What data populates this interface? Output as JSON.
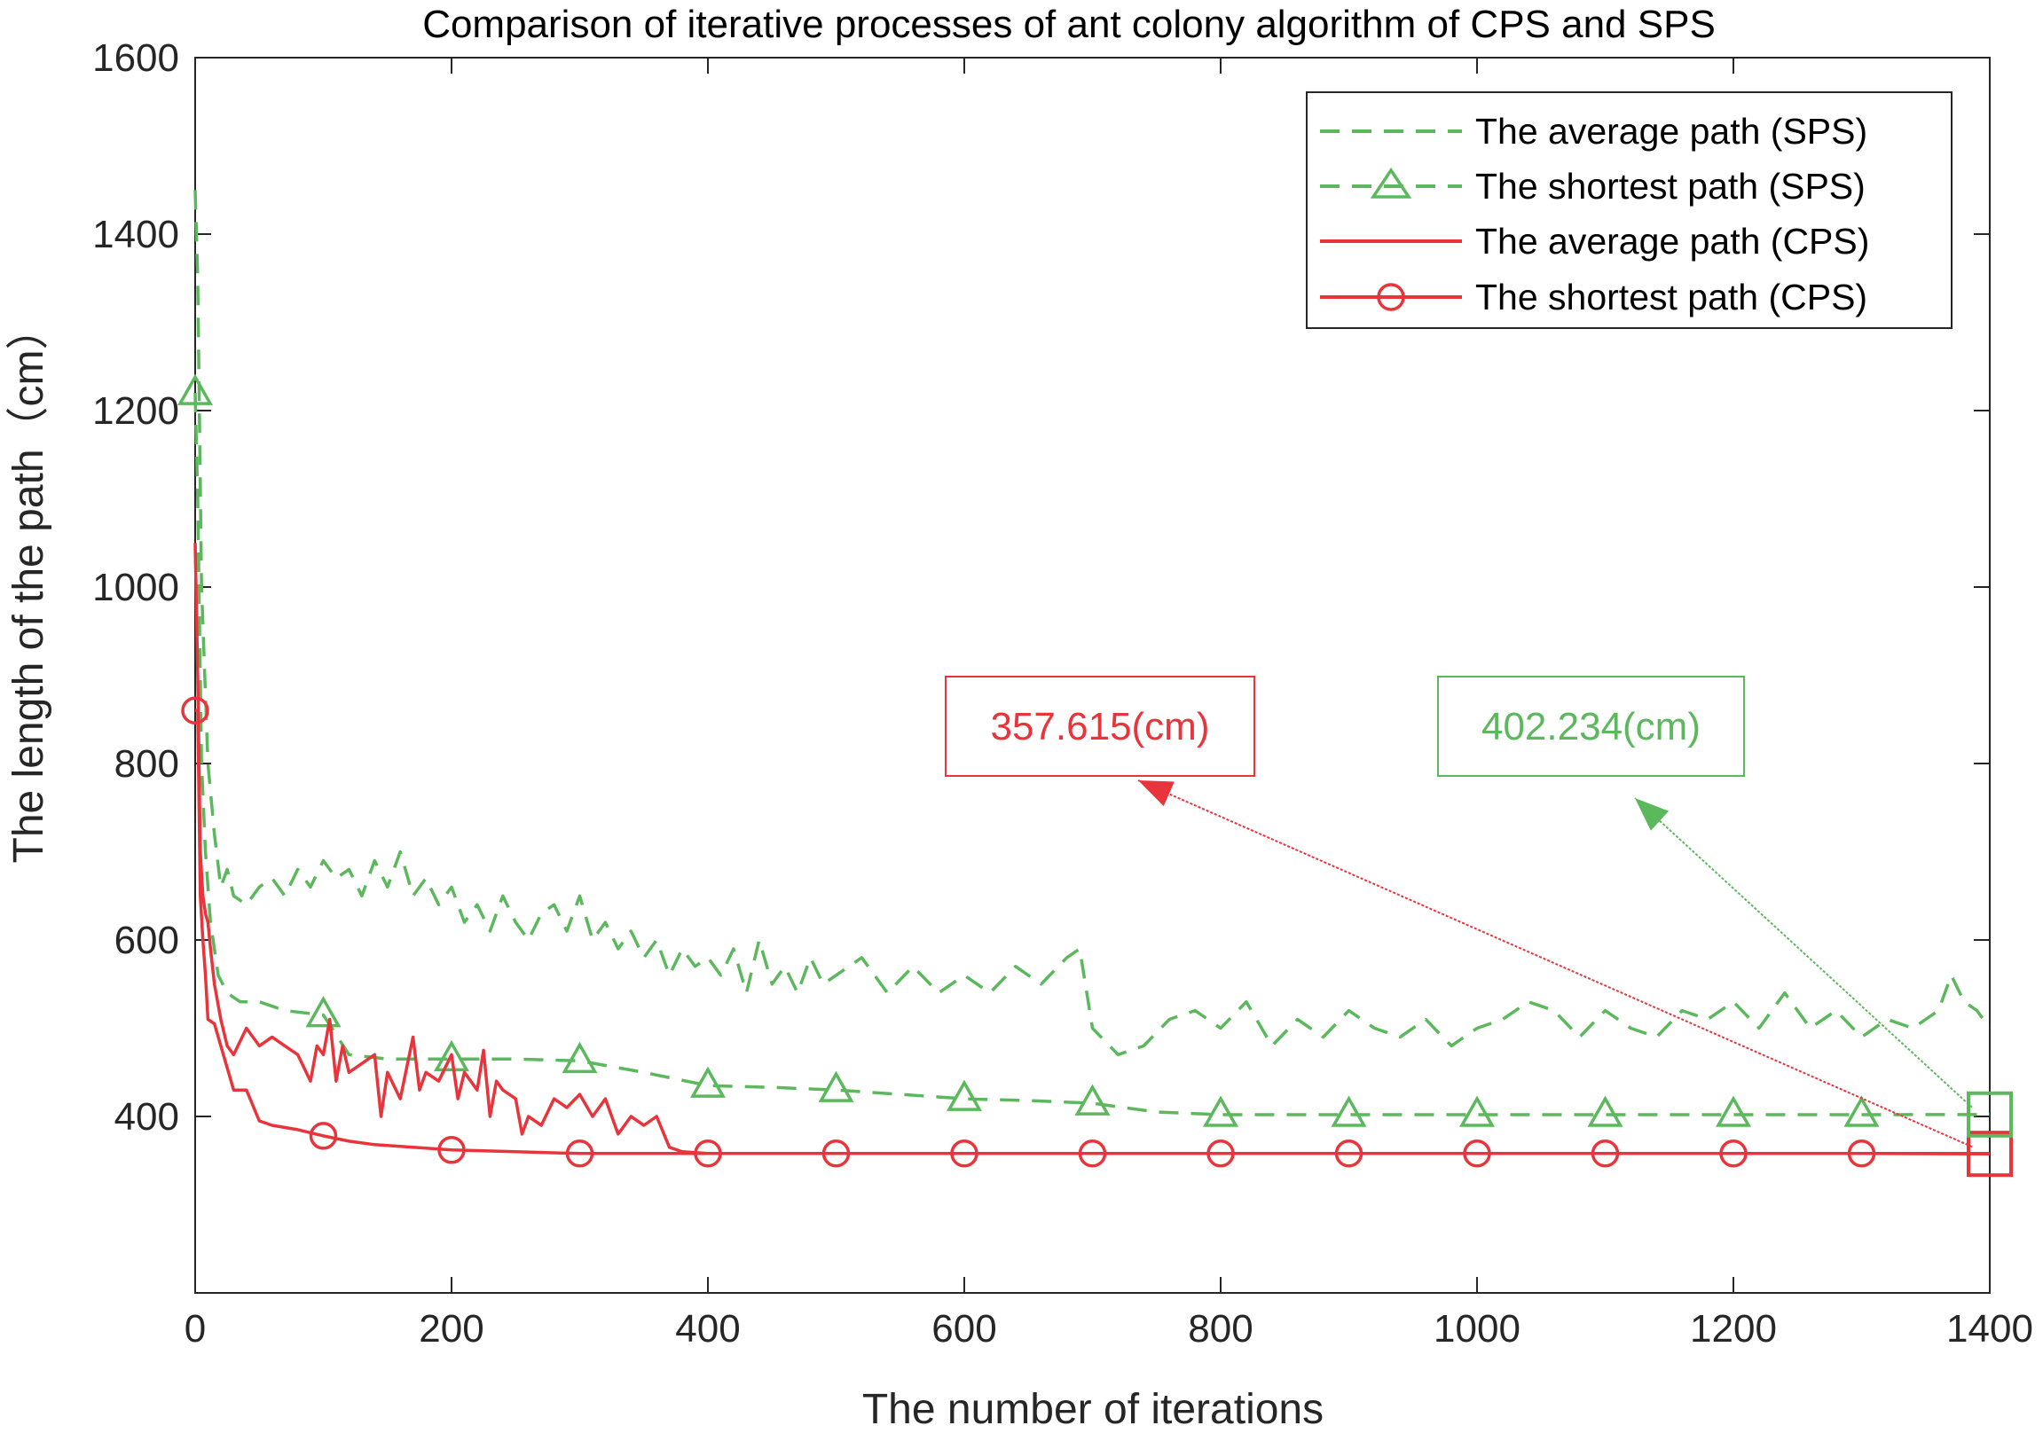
{
  "chart_data": {
    "type": "line",
    "title": "Comparison of iterative processes of ant colony algorithm of CPS and SPS",
    "xlabel": "The number of iterations",
    "ylabel": "The length of the path（cm）",
    "xlim": [
      0,
      1400
    ],
    "ylim": [
      200,
      1600
    ],
    "xticks": [
      0,
      200,
      400,
      600,
      800,
      1000,
      1200,
      1400
    ],
    "yticks": [
      400,
      600,
      800,
      1000,
      1200,
      1400,
      1600
    ],
    "legend_position": "top-right",
    "colors": {
      "sps": "#5cb85c",
      "cps": "#e8343a",
      "axis": "#262626"
    },
    "series": [
      {
        "name": "The average path (SPS)",
        "style": "dashed",
        "marker": "none",
        "color": "#5cb85c",
        "x": [
          0,
          2,
          5,
          10,
          15,
          20,
          25,
          30,
          40,
          50,
          60,
          70,
          80,
          90,
          100,
          110,
          120,
          130,
          140,
          150,
          160,
          170,
          180,
          190,
          200,
          210,
          220,
          230,
          240,
          250,
          260,
          270,
          280,
          290,
          300,
          310,
          320,
          330,
          340,
          350,
          360,
          370,
          380,
          390,
          400,
          410,
          420,
          430,
          440,
          450,
          460,
          470,
          480,
          490,
          500,
          520,
          540,
          560,
          580,
          600,
          620,
          640,
          660,
          680,
          690,
          700,
          720,
          740,
          760,
          780,
          800,
          820,
          840,
          860,
          880,
          900,
          920,
          940,
          960,
          980,
          1000,
          1020,
          1040,
          1060,
          1080,
          1100,
          1120,
          1140,
          1160,
          1180,
          1200,
          1220,
          1240,
          1260,
          1280,
          1300,
          1320,
          1340,
          1360,
          1370,
          1380,
          1390,
          1400
        ],
        "y": [
          1450,
          1350,
          1000,
          800,
          720,
          660,
          680,
          650,
          640,
          660,
          670,
          650,
          680,
          660,
          690,
          670,
          680,
          650,
          690,
          660,
          700,
          650,
          670,
          640,
          660,
          620,
          640,
          610,
          650,
          620,
          600,
          630,
          640,
          610,
          650,
          600,
          620,
          590,
          610,
          580,
          600,
          560,
          590,
          570,
          580,
          560,
          590,
          540,
          600,
          550,
          570,
          540,
          580,
          550,
          560,
          580,
          540,
          570,
          540,
          560,
          540,
          570,
          550,
          580,
          590,
          500,
          470,
          480,
          510,
          520,
          500,
          530,
          480,
          510,
          490,
          520,
          500,
          490,
          510,
          480,
          500,
          510,
          530,
          520,
          490,
          520,
          500,
          490,
          520,
          510,
          530,
          500,
          540,
          500,
          520,
          490,
          510,
          500,
          520,
          560,
          530,
          520,
          500
        ]
      },
      {
        "name": "The shortest path (SPS)",
        "style": "dashed",
        "marker": "triangle",
        "color": "#5cb85c",
        "x": [
          0,
          2,
          5,
          8,
          12,
          18,
          25,
          35,
          50,
          70,
          100,
          120,
          150,
          200,
          250,
          300,
          350,
          400,
          450,
          500,
          550,
          600,
          650,
          700,
          750,
          800,
          900,
          1000,
          1100,
          1200,
          1300,
          1400
        ],
        "y": [
          1220,
          1100,
          800,
          700,
          620,
          560,
          540,
          530,
          530,
          520,
          515,
          470,
          465,
          465,
          465,
          463,
          450,
          435,
          433,
          430,
          425,
          420,
          418,
          415,
          405,
          402,
          402,
          402,
          402,
          402,
          402,
          402.234
        ],
        "marker_x": [
          0,
          100,
          200,
          300,
          400,
          500,
          600,
          700,
          800,
          900,
          1000,
          1100,
          1200,
          1300
        ]
      },
      {
        "name": "The average path (CPS)",
        "style": "solid",
        "marker": "none",
        "color": "#e8343a",
        "x": [
          0,
          2,
          4,
          6,
          8,
          10,
          12,
          15,
          20,
          25,
          30,
          40,
          50,
          60,
          70,
          80,
          90,
          95,
          100,
          105,
          110,
          115,
          120,
          130,
          140,
          145,
          150,
          160,
          170,
          175,
          180,
          190,
          200,
          205,
          210,
          220,
          225,
          230,
          235,
          240,
          250,
          255,
          260,
          270,
          280,
          290,
          300,
          310,
          320,
          330,
          340,
          350,
          360,
          370,
          380,
          400,
          600,
          800,
          1000,
          1200,
          1400
        ],
        "y": [
          1050,
          900,
          700,
          650,
          630,
          620,
          590,
          550,
          510,
          480,
          470,
          500,
          480,
          490,
          480,
          470,
          440,
          480,
          470,
          510,
          440,
          480,
          450,
          460,
          470,
          400,
          450,
          420,
          490,
          430,
          450,
          440,
          470,
          420,
          450,
          430,
          475,
          400,
          440,
          430,
          420,
          380,
          400,
          390,
          420,
          410,
          425,
          400,
          420,
          380,
          400,
          390,
          400,
          365,
          360,
          358,
          358,
          358,
          358,
          358,
          358
        ]
      },
      {
        "name": "The shortest path (CPS)",
        "style": "solid",
        "marker": "circle",
        "color": "#e8343a",
        "x": [
          0,
          2,
          4,
          6,
          8,
          10,
          15,
          20,
          30,
          40,
          50,
          60,
          80,
          100,
          120,
          140,
          160,
          200,
          250,
          300,
          400,
          500,
          600,
          700,
          800,
          900,
          1000,
          1100,
          1200,
          1300,
          1400
        ],
        "y": [
          860,
          860,
          650,
          600,
          560,
          510,
          505,
          480,
          430,
          430,
          395,
          390,
          385,
          378,
          372,
          368,
          366,
          362,
          360,
          358,
          358,
          358,
          358,
          358,
          358,
          358,
          358,
          358,
          358,
          358,
          357.615
        ],
        "marker_x": [
          0,
          100,
          200,
          300,
          400,
          500,
          600,
          700,
          800,
          900,
          1000,
          1100,
          1200,
          1300
        ]
      }
    ],
    "annotations": [
      {
        "text": "357.615(cm)",
        "color": "#e8343a",
        "target_x": 1400,
        "target_y": 357.615
      },
      {
        "text": "402.234(cm)",
        "color": "#5cb85c",
        "target_x": 1400,
        "target_y": 402.234
      }
    ]
  }
}
